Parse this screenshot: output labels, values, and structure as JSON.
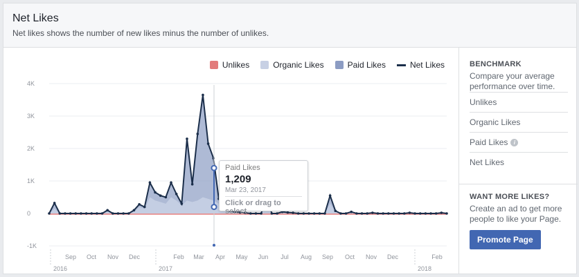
{
  "header": {
    "title": "Net Likes",
    "subtitle": "Net likes shows the number of new likes minus the number of unlikes."
  },
  "legend": [
    {
      "label": "Unlikes",
      "color": "#e27b7b"
    },
    {
      "label": "Organic Likes",
      "color": "#c7d0e4"
    },
    {
      "label": "Paid Likes",
      "color": "#8c9cc3"
    },
    {
      "label": "Net Likes",
      "color": "#1b2e4a"
    }
  ],
  "tooltip": {
    "label": "Paid Likes",
    "value": "1,209",
    "date": "Mar 23, 2017",
    "hint": "Click or drag to select"
  },
  "sidebar": {
    "benchmark_heading": "BENCHMARK",
    "benchmark_desc": "Compare your average performance over time.",
    "items": [
      "Unlikes",
      "Organic Likes",
      "Paid Likes",
      "Net Likes"
    ],
    "more_heading": "WANT MORE LIKES?",
    "more_desc": "Create an ad to get more people to like your Page.",
    "promote_label": "Promote Page"
  },
  "chart_data": {
    "type": "area",
    "y_ticks": [
      "4K",
      "3K",
      "2K",
      "1K",
      "0",
      "-1K"
    ],
    "ylim": [
      -1000,
      4000
    ],
    "x_ticks": [
      "Sep",
      "Oct",
      "Nov",
      "Dec",
      "Feb",
      "Mar",
      "Apr",
      "May",
      "Jun",
      "Jul",
      "Aug",
      "Sep",
      "Oct",
      "Nov",
      "Dec",
      "Feb"
    ],
    "years": [
      "2016",
      "2017",
      "2018"
    ],
    "series": [
      {
        "name": "Net Likes",
        "values": [
          0,
          320,
          0,
          0,
          0,
          0,
          0,
          0,
          0,
          0,
          0,
          100,
          0,
          0,
          0,
          0,
          100,
          280,
          200,
          950,
          650,
          550,
          500,
          950,
          600,
          300,
          2300,
          900,
          2450,
          3650,
          2150,
          1700,
          450,
          150,
          80,
          50,
          30,
          20,
          0,
          0,
          0,
          550,
          0,
          0,
          50,
          30,
          20,
          0,
          0,
          0,
          0,
          0,
          0,
          550,
          80,
          0,
          0,
          50,
          0,
          0,
          0,
          20,
          0,
          0,
          0,
          0,
          0,
          0,
          20,
          0,
          0,
          0,
          0,
          0,
          20,
          0
        ]
      },
      {
        "name": "Organic Likes",
        "values": [
          0,
          150,
          0,
          0,
          0,
          0,
          0,
          0,
          0,
          0,
          0,
          50,
          0,
          0,
          0,
          0,
          50,
          200,
          150,
          500,
          400,
          350,
          300,
          500,
          400,
          250,
          400,
          350,
          400,
          500,
          450,
          400,
          300,
          120,
          60,
          40,
          20,
          10,
          0,
          0,
          0,
          300,
          0,
          0,
          30,
          20,
          10,
          0,
          0,
          0,
          0,
          0,
          0,
          300,
          50,
          0,
          0,
          30,
          0,
          0,
          0,
          10,
          0,
          0,
          0,
          0,
          0,
          0,
          10,
          0,
          0,
          0,
          0,
          0,
          10,
          0
        ]
      }
    ]
  }
}
